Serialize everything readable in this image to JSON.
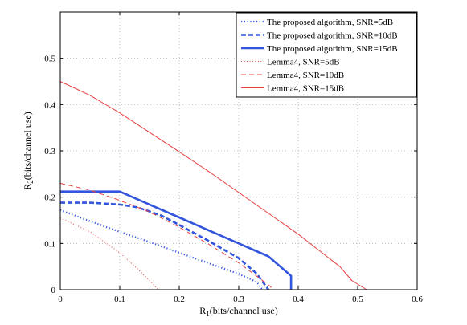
{
  "chart_data": {
    "type": "line",
    "xlabel": "R",
    "xlabel_sub": "1",
    "xlabel_rest": "(bits/channel use)",
    "ylabel": "R",
    "ylabel_sub": "2",
    "ylabel_rest": "(bits/channel use)",
    "xlim": [
      0,
      0.6
    ],
    "ylim": [
      0,
      0.6
    ],
    "xticks": [
      "0",
      "0.1",
      "0.2",
      "0.3",
      "0.4",
      "0.5",
      "0.6"
    ],
    "yticks": [
      "0",
      "0.1",
      "0.2",
      "0.3",
      "0.4",
      "0.5"
    ],
    "grid": true,
    "legend_position": "top-right",
    "series": [
      {
        "name": "The proposed algorithm, SNR=5dB",
        "color": "#3355dd",
        "style": "dotted",
        "width": 2.2,
        "x": [
          0,
          0.05,
          0.1,
          0.15,
          0.2,
          0.25,
          0.3,
          0.33,
          0.34
        ],
        "y": [
          0.172,
          0.148,
          0.125,
          0.103,
          0.08,
          0.057,
          0.034,
          0.017,
          0
        ]
      },
      {
        "name": "The proposed algorithm, SNR=10dB",
        "color": "#3355dd",
        "style": "dashed",
        "width": 2.6,
        "x": [
          0,
          0.05,
          0.1,
          0.13,
          0.17,
          0.2,
          0.25,
          0.3,
          0.33,
          0.35
        ],
        "y": [
          0.188,
          0.188,
          0.184,
          0.178,
          0.16,
          0.14,
          0.105,
          0.068,
          0.035,
          0
        ]
      },
      {
        "name": "The proposed algorithm, SNR=15dB",
        "color": "#3355dd",
        "style": "solid",
        "width": 2.6,
        "x": [
          0,
          0.1,
          0.15,
          0.2,
          0.25,
          0.3,
          0.35,
          0.388,
          0.388
        ],
        "y": [
          0.212,
          0.212,
          0.184,
          0.156,
          0.128,
          0.1,
          0.072,
          0.03,
          0
        ]
      },
      {
        "name": "Lemma4, SNR=5dB",
        "color": "#e64040",
        "style": "dotted",
        "width": 1,
        "x": [
          0,
          0.05,
          0.1,
          0.13,
          0.15,
          0.165
        ],
        "y": [
          0.155,
          0.125,
          0.08,
          0.045,
          0.02,
          0
        ]
      },
      {
        "name": "Lemma4, SNR=10dB",
        "color": "#e64040",
        "style": "dashed",
        "width": 1,
        "x": [
          0,
          0.05,
          0.1,
          0.15,
          0.2,
          0.25,
          0.3,
          0.34,
          0.36
        ],
        "y": [
          0.23,
          0.215,
          0.193,
          0.168,
          0.135,
          0.098,
          0.058,
          0.02,
          0
        ]
      },
      {
        "name": "Lemma4, SNR=15dB",
        "color": "#e64040",
        "style": "solid",
        "width": 1,
        "x": [
          0,
          0.05,
          0.1,
          0.15,
          0.2,
          0.25,
          0.3,
          0.35,
          0.4,
          0.44,
          0.47,
          0.49,
          0.515
        ],
        "y": [
          0.45,
          0.42,
          0.382,
          0.34,
          0.298,
          0.255,
          0.21,
          0.165,
          0.12,
          0.08,
          0.05,
          0.02,
          0
        ]
      }
    ]
  }
}
